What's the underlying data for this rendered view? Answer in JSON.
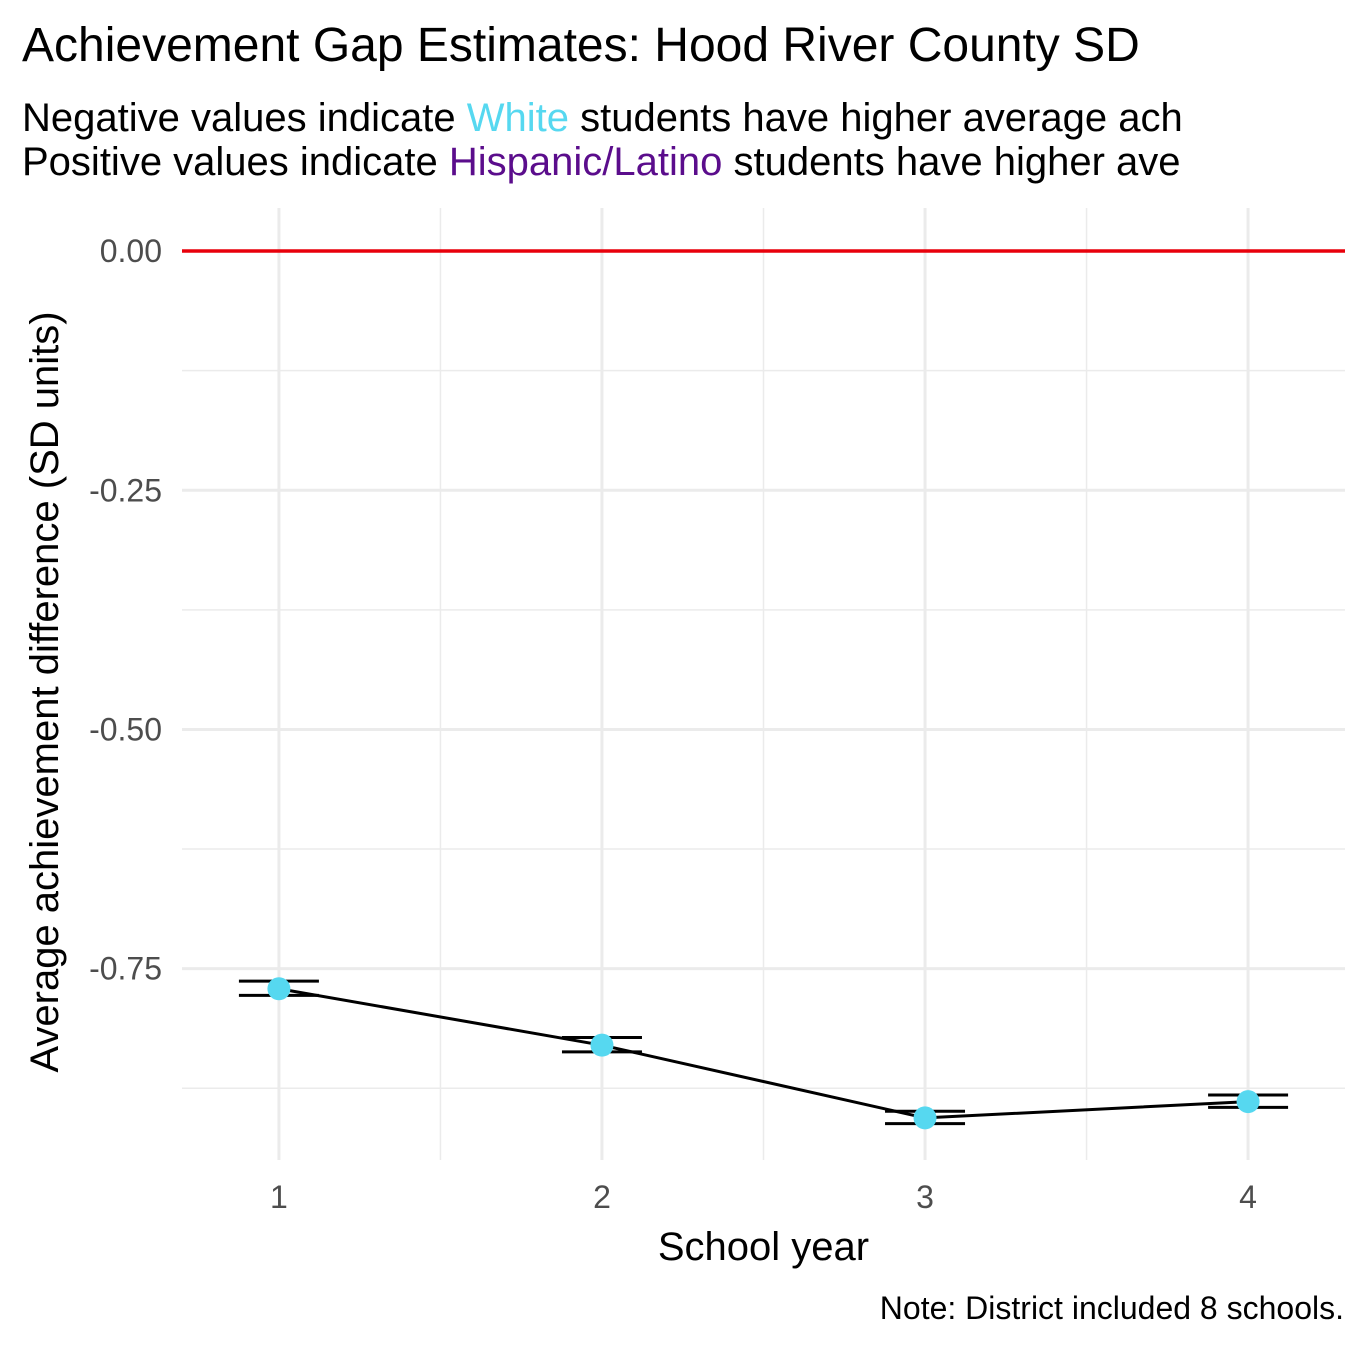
{
  "title": "Achievement Gap Estimates: Hood River County SD",
  "subtitle": {
    "line1_prefix": "Negative values indicate ",
    "line1_group": "White",
    "line1_suffix": " students have higher average ach",
    "line2_prefix": "Positive values indicate ",
    "line2_group": "Hispanic/Latino",
    "line2_suffix": " students have higher ave"
  },
  "caption": "Note: District included 8 schools.",
  "colors": {
    "point": "#56D8F0",
    "reference_line": "#E8000B",
    "white_group": "#56D8F0",
    "hispanic_group": "#5B0D8C",
    "line": "#000000",
    "grid": "#EBEBEB"
  },
  "chart_data": {
    "type": "line",
    "x": [
      1,
      2,
      3,
      4
    ],
    "series": [
      {
        "values": [
          -0.771,
          -0.83,
          -0.906,
          -0.889
        ],
        "error_low": [
          -0.778,
          -0.837,
          -0.912,
          -0.895
        ],
        "error_high": [
          -0.763,
          -0.822,
          -0.899,
          -0.882
        ]
      }
    ],
    "reference_line": 0,
    "xlabel": "School year",
    "ylabel": "Average achievement difference (SD units)",
    "xlim": [
      0.7,
      4.3
    ],
    "ylim": [
      -0.95,
      0.045
    ],
    "xticks": [
      1,
      2,
      3,
      4
    ],
    "xtick_labels": [
      "1",
      "2",
      "3",
      "4"
    ],
    "yticks": [
      0,
      -0.25,
      -0.5,
      -0.75
    ],
    "ytick_labels": [
      "0.00",
      "-0.25",
      "-0.50",
      "-0.75"
    ],
    "y_minor_ticks": [
      -0.125,
      -0.375,
      -0.625,
      -0.875
    ],
    "x_minor_ticks": [
      1.5,
      2.5,
      3.5
    ],
    "grid": true,
    "legend": "none"
  }
}
